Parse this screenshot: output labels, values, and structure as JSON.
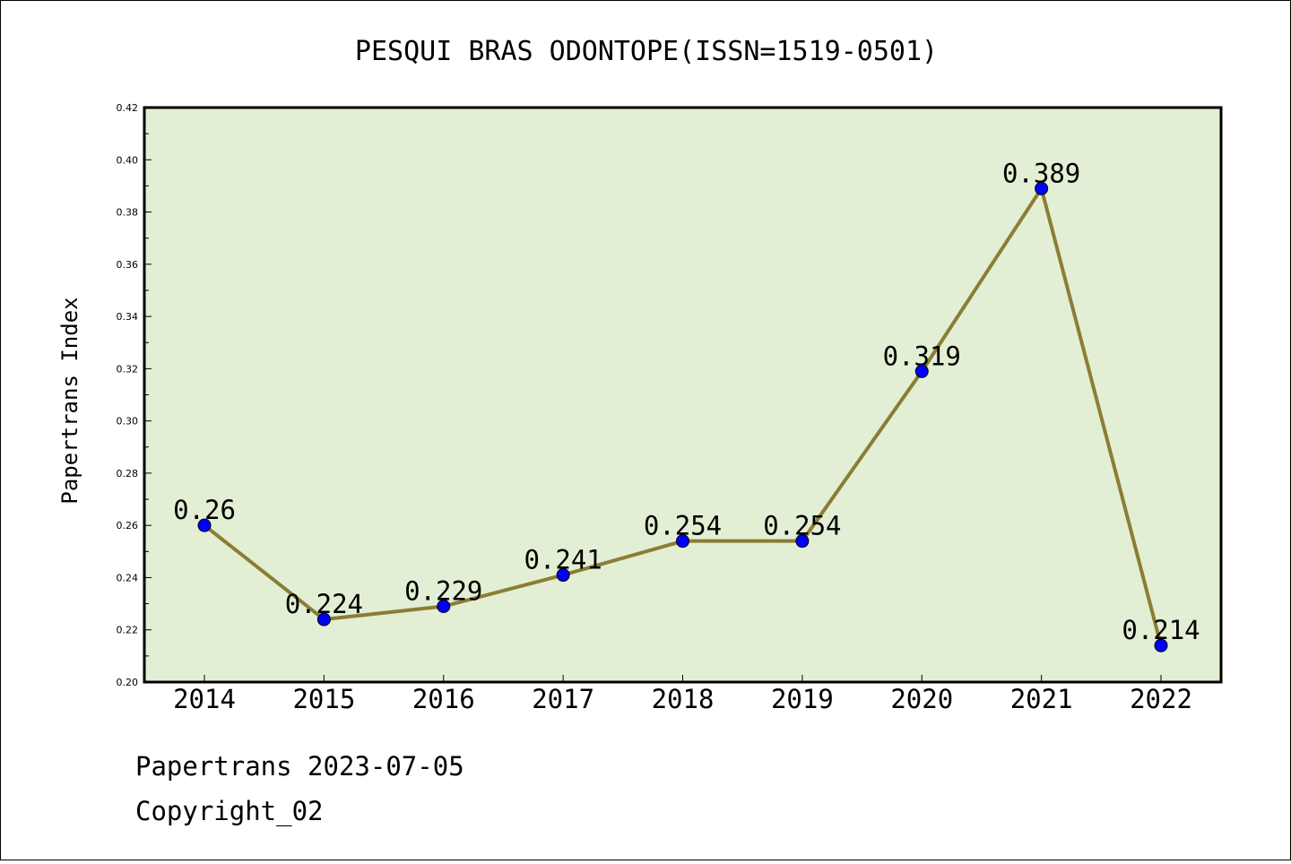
{
  "chart_data": {
    "type": "line",
    "title": "PESQUI BRAS ODONTOPE(ISSN=1519-0501)",
    "xlabel": "",
    "ylabel": "Papertrans Index",
    "categories": [
      "2014",
      "2015",
      "2016",
      "2017",
      "2018",
      "2019",
      "2020",
      "2021",
      "2022"
    ],
    "values": [
      0.26,
      0.224,
      0.229,
      0.241,
      0.254,
      0.254,
      0.319,
      0.389,
      0.214
    ],
    "value_labels": [
      "0.26",
      "0.224",
      "0.229",
      "0.241",
      "0.254",
      "0.254",
      "0.319",
      "0.389",
      "0.214"
    ],
    "ylim": [
      0.2,
      0.42
    ],
    "yticks": [
      "0.20",
      "0.22",
      "0.24",
      "0.26",
      "0.28",
      "0.30",
      "0.32",
      "0.34",
      "0.36",
      "0.38",
      "0.40",
      "0.42"
    ],
    "grid": false,
    "colors": {
      "plot_background": "#e2efd4",
      "line": "#8b7d35",
      "marker": "#0000ff"
    }
  },
  "footer": {
    "line1": "Papertrans 2023-07-05",
    "line2": "Copyright_02"
  }
}
